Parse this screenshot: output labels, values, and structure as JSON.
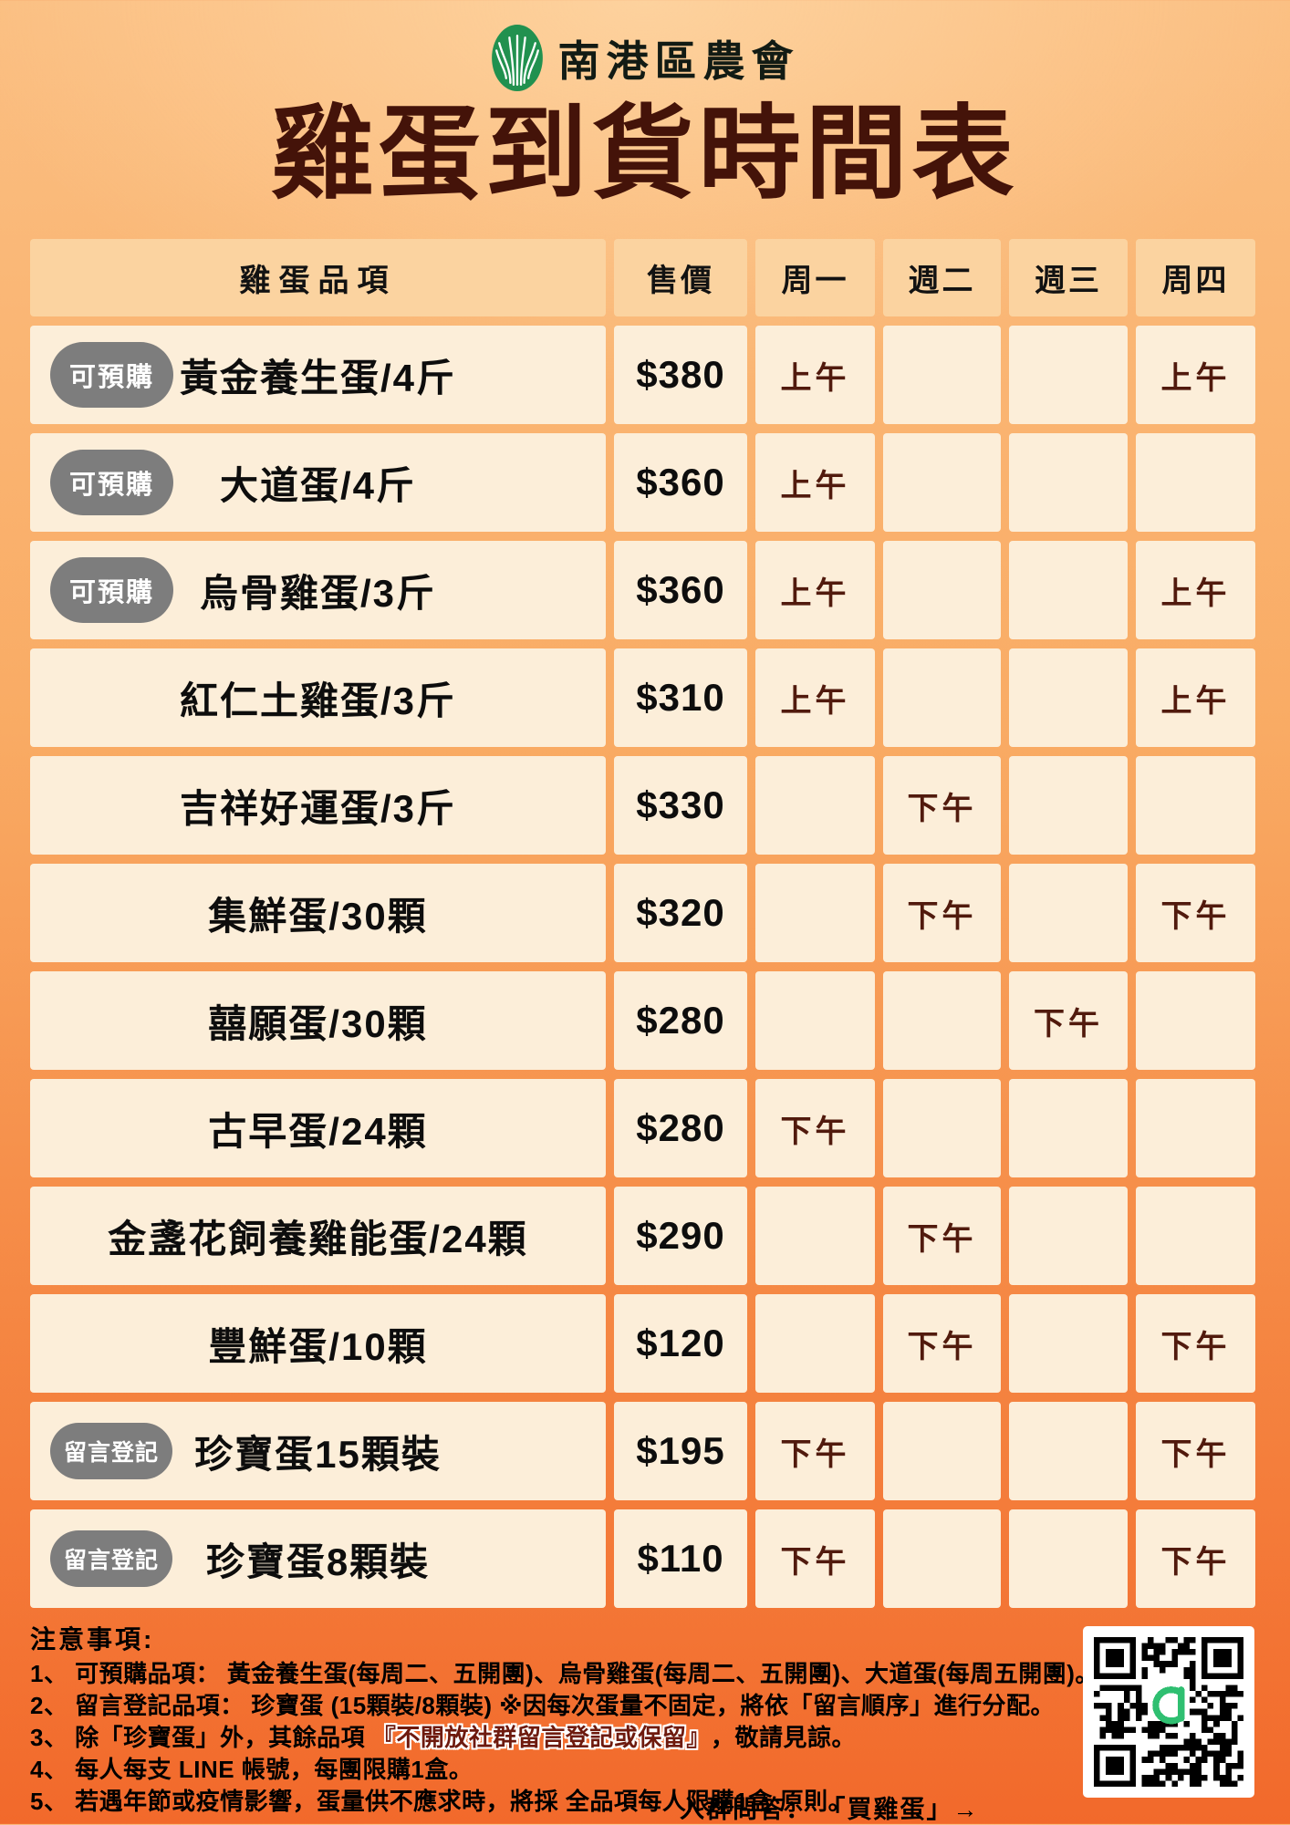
{
  "page": {
    "org_name": "南港區農會",
    "title": "雞蛋到貨時間表"
  },
  "table": {
    "columns": [
      "雞蛋品項",
      "售價",
      "周一",
      "週二",
      "週三",
      "周四"
    ],
    "rows": [
      {
        "badge": "可預購",
        "name": "黃金養生蛋/4斤",
        "price": "$380",
        "days": [
          "上午",
          "",
          "",
          "上午"
        ]
      },
      {
        "badge": "可預購",
        "name": "大道蛋/4斤",
        "price": "$360",
        "days": [
          "上午",
          "",
          "",
          ""
        ]
      },
      {
        "badge": "可預購",
        "name": "烏骨雞蛋/3斤",
        "price": "$360",
        "days": [
          "上午",
          "",
          "",
          "上午"
        ]
      },
      {
        "badge": "",
        "name": "紅仁土雞蛋/3斤",
        "price": "$310",
        "days": [
          "上午",
          "",
          "",
          "上午"
        ]
      },
      {
        "badge": "",
        "name": "吉祥好運蛋/3斤",
        "price": "$330",
        "days": [
          "",
          "下午",
          "",
          ""
        ]
      },
      {
        "badge": "",
        "name": "集鮮蛋/30顆",
        "price": "$320",
        "days": [
          "",
          "下午",
          "",
          "下午"
        ]
      },
      {
        "badge": "",
        "name": "囍願蛋/30顆",
        "price": "$280",
        "days": [
          "",
          "",
          "下午",
          ""
        ]
      },
      {
        "badge": "",
        "name": "古早蛋/24顆",
        "price": "$280",
        "days": [
          "下午",
          "",
          "",
          ""
        ]
      },
      {
        "badge": "",
        "name": "金盞花飼養雞能蛋/24顆",
        "price": "$290",
        "days": [
          "",
          "下午",
          "",
          ""
        ]
      },
      {
        "badge": "",
        "name": "豐鮮蛋/10顆",
        "price": "$120",
        "days": [
          "",
          "下午",
          "",
          "下午"
        ]
      },
      {
        "badge": "留言登記",
        "name": "珍寶蛋15顆裝",
        "price": "$195",
        "days": [
          "下午",
          "",
          "",
          "下午"
        ]
      },
      {
        "badge": "留言登記",
        "name": "珍寶蛋8顆裝",
        "price": "$110",
        "days": [
          "下午",
          "",
          "",
          "下午"
        ]
      }
    ]
  },
  "notes": {
    "title": "注意事項:",
    "items": [
      "1、 可預購品項： 黃金養生蛋(每周二、五開團)、烏骨雞蛋(每周二、五開團)、大道蛋(每周五開團)。",
      "2、 留言登記品項： 珍寶蛋 (15顆裝/8顆裝) ※因每次蛋量不固定，將依「留言順序」進行分配。",
      {
        "prefix": "3、 除「珍寶蛋」外，其餘品項 ",
        "highlight": "『不開放社群留言登記或保留』",
        "suffix": "，敬請見諒。"
      },
      "4、 每人每支 LINE 帳號，每團限購1盒。",
      "5、 若遇年節或疫情影響，蛋量供不應求時，將採 全品項每人限購1盒 原則。"
    ],
    "join_qa": "入群問答： 「買雞蛋」→"
  },
  "colors": {
    "background_orange": "#F2692B",
    "header_cell_peach": "#FBD3A0",
    "body_cell_cream": "#FCEED9",
    "title_maroon": "#441309",
    "schedule_maroon": "#511A0D",
    "badge_gray": "#7D7D7D",
    "logo_green": "#21914F",
    "qr_logo_green": "#2FBF71"
  }
}
